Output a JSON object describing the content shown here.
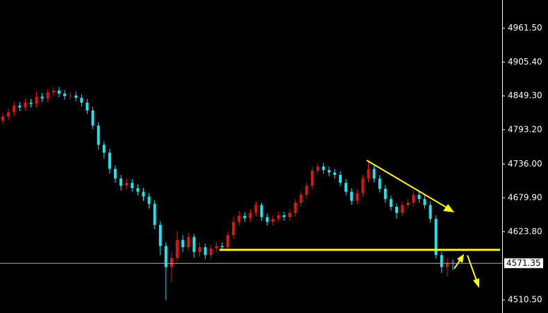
{
  "chart_data": {
    "type": "candlestick",
    "up_color": "#e01414",
    "down_color": "#1ee4f0",
    "open": [
      4808,
      4815,
      4822,
      4833,
      4830,
      4838,
      4836,
      4848,
      4845,
      4855,
      4858,
      4853,
      4849,
      4850,
      4846,
      4838,
      4825,
      4800,
      4768,
      4755,
      4728,
      4712,
      4700,
      4705,
      4696,
      4690,
      4682,
      4670,
      4635,
      4600,
      4565,
      4580,
      4610,
      4598,
      4615,
      4590,
      4598,
      4585,
      4596,
      4600,
      4598,
      4618,
      4640,
      4650,
      4646,
      4655,
      4668,
      4648,
      4640,
      4645,
      4651,
      4648,
      4655,
      4672,
      4685,
      4700,
      4725,
      4732,
      4726,
      4722,
      4718,
      4705,
      4690,
      4675,
      4688,
      4712,
      4728,
      4712,
      4695,
      4678,
      4665,
      4655,
      4668,
      4672,
      4685,
      4678,
      4668,
      4645,
      4585,
      4565,
      4572
    ],
    "high": [
      4821,
      4828,
      4839,
      4839,
      4844,
      4844,
      4856,
      4854,
      4861,
      4864,
      4864,
      4859,
      4856,
      4856,
      4852,
      4844,
      4831,
      4806,
      4774,
      4761,
      4734,
      4718,
      4712,
      4711,
      4702,
      4696,
      4688,
      4676,
      4641,
      4606,
      4590,
      4625,
      4618,
      4622,
      4620,
      4606,
      4604,
      4602,
      4607,
      4606,
      4624,
      4648,
      4658,
      4656,
      4661,
      4674,
      4672,
      4654,
      4651,
      4657,
      4657,
      4661,
      4678,
      4691,
      4706,
      4731,
      4738,
      4738,
      4732,
      4728,
      4724,
      4711,
      4696,
      4694,
      4718,
      4740,
      4734,
      4718,
      4701,
      4684,
      4671,
      4674,
      4678,
      4692,
      4691,
      4684,
      4674,
      4651,
      4590,
      4580,
      4578
    ],
    "low": [
      4802,
      4809,
      4816,
      4824,
      4824,
      4830,
      4830,
      4839,
      4839,
      4849,
      4847,
      4843,
      4843,
      4840,
      4832,
      4819,
      4794,
      4760,
      4745,
      4720,
      4705,
      4692,
      4694,
      4690,
      4684,
      4675,
      4662,
      4628,
      4585,
      4510,
      4540,
      4574,
      4590,
      4592,
      4580,
      4582,
      4578,
      4579,
      4590,
      4592,
      4592,
      4612,
      4634,
      4640,
      4640,
      4649,
      4642,
      4634,
      4634,
      4639,
      4642,
      4642,
      4649,
      4666,
      4679,
      4694,
      4719,
      4720,
      4716,
      4712,
      4699,
      4684,
      4668,
      4669,
      4682,
      4706,
      4706,
      4689,
      4672,
      4659,
      4645,
      4649,
      4662,
      4666,
      4672,
      4662,
      4639,
      4579,
      4555,
      4550,
      4560
    ],
    "close": [
      4815,
      4822,
      4833,
      4830,
      4838,
      4836,
      4848,
      4845,
      4855,
      4858,
      4853,
      4849,
      4850,
      4846,
      4838,
      4825,
      4800,
      4768,
      4755,
      4728,
      4712,
      4700,
      4705,
      4696,
      4690,
      4682,
      4670,
      4635,
      4600,
      4565,
      4580,
      4610,
      4598,
      4615,
      4590,
      4598,
      4585,
      4596,
      4600,
      4598,
      4618,
      4640,
      4650,
      4646,
      4655,
      4668,
      4648,
      4640,
      4645,
      4651,
      4648,
      4655,
      4672,
      4685,
      4700,
      4725,
      4732,
      4726,
      4722,
      4718,
      4705,
      4690,
      4675,
      4688,
      4712,
      4728,
      4712,
      4695,
      4678,
      4665,
      4655,
      4668,
      4672,
      4685,
      4678,
      4668,
      4645,
      4585,
      4565,
      4572,
      4571.35
    ],
    "ylim": [
      4488.75,
      5008.44
    ],
    "yticks": [
      {
        "value": 4510.5,
        "label": "4510.50"
      },
      {
        "value": 4623.8,
        "label": "4623.80"
      },
      {
        "value": 4679.9,
        "label": "4679.90"
      },
      {
        "value": 4736,
        "label": "4736.00"
      },
      {
        "value": 4793.2,
        "label": "4793.20"
      },
      {
        "value": 4849.3,
        "label": "4849.30"
      },
      {
        "value": 4905.4,
        "label": "4905.40"
      },
      {
        "value": 4961.5,
        "label": "4961.50"
      }
    ],
    "current_price": 4571.35
  }
}
